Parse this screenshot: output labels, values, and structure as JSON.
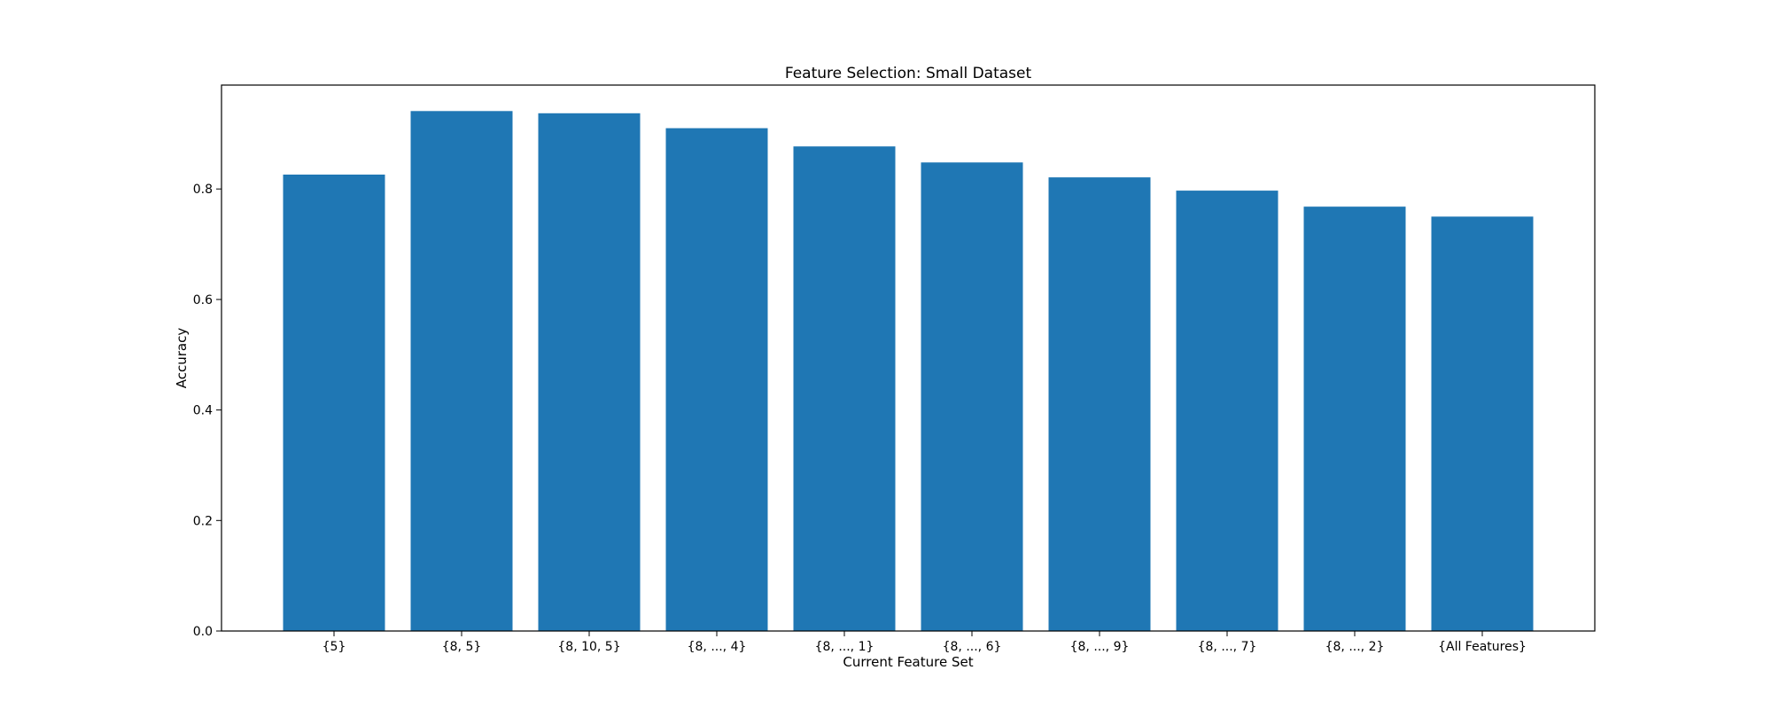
{
  "chart_data": {
    "type": "bar",
    "title": "Feature Selection: Small Dataset",
    "xlabel": "Current Feature Set",
    "ylabel": "Accuracy",
    "categories": [
      "{5}",
      "{8, 5}",
      "{8, 10, 5}",
      "{8, ..., 4}",
      "{8, ..., 1}",
      "{8, ..., 6}",
      "{8, ..., 9}",
      "{8, ..., 7}",
      "{8, ..., 2}",
      "{All Features}"
    ],
    "values": [
      0.826,
      0.941,
      0.937,
      0.91,
      0.877,
      0.848,
      0.821,
      0.797,
      0.768,
      0.75
    ],
    "ylim": [
      0,
      0.988
    ],
    "yticks": [
      0.0,
      0.2,
      0.4,
      0.6,
      0.8
    ],
    "ytick_labels": [
      "0.0",
      "0.2",
      "0.4",
      "0.6",
      "0.8"
    ],
    "bar_color": "#1f77b4",
    "grid": false,
    "legend": "none"
  }
}
